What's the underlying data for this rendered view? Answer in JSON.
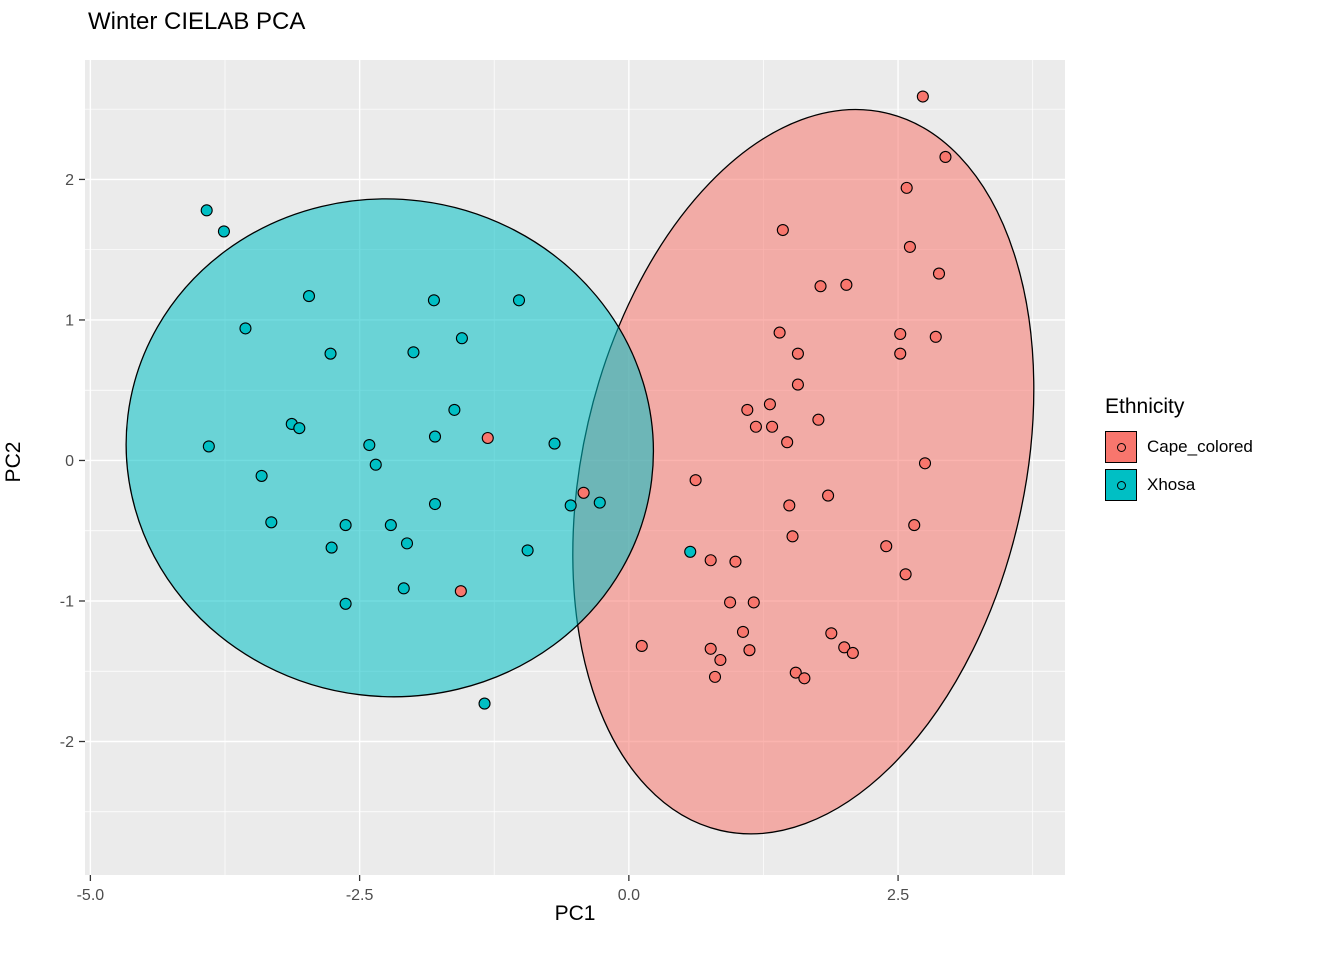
{
  "title": "Winter CIELAB PCA",
  "axes": {
    "x_label": "PC1",
    "y_label": "PC2"
  },
  "legend": {
    "title": "Ethnicity",
    "items": [
      {
        "label": "Cape_colored",
        "color": "#F8766D"
      },
      {
        "label": "Xhosa",
        "color": "#00BFC4"
      }
    ]
  },
  "colors": {
    "panel_bg": "#EBEBEB",
    "grid": "#FFFFFF",
    "tick_label": "#4d4d4d",
    "point_stroke": "#000000",
    "ellipse_stroke": "#000000"
  },
  "chart_data": {
    "type": "scatter",
    "title": "Winter CIELAB PCA",
    "xlabel": "PC1",
    "ylabel": "PC2",
    "xlim": [
      -5.05,
      4.05
    ],
    "ylim": [
      -2.95,
      2.85
    ],
    "x_ticks": [
      -5.0,
      -2.5,
      0.0,
      2.5
    ],
    "x_tick_labels": [
      "-5.0",
      "-2.5",
      "0.0",
      "2.5"
    ],
    "x_minor_ticks": [
      -3.75,
      -1.25,
      1.25,
      3.75
    ],
    "y_ticks": [
      -2,
      -1,
      0,
      1,
      2
    ],
    "y_tick_labels": [
      "-2",
      "-1",
      "0",
      "1",
      "2"
    ],
    "y_minor_ticks": [
      2.5,
      1.5,
      0.5,
      -0.5,
      -1.5,
      -2.5
    ],
    "grid": true,
    "legend_position": "right",
    "legend_title": "Ethnicity",
    "fill_alpha": 0.55,
    "series": [
      {
        "name": "Cape_colored",
        "color": "#F8766D",
        "ellipse": {
          "cx": 1.62,
          "cy": -0.08,
          "rx": 2.05,
          "ry": 2.62,
          "rotate_deg": 13
        },
        "points": [
          [
            2.73,
            2.59
          ],
          [
            2.94,
            2.16
          ],
          [
            2.58,
            1.94
          ],
          [
            1.43,
            1.64
          ],
          [
            2.61,
            1.52
          ],
          [
            2.88,
            1.33
          ],
          [
            1.78,
            1.24
          ],
          [
            2.02,
            1.25
          ],
          [
            2.52,
            0.9
          ],
          [
            2.85,
            0.88
          ],
          [
            1.4,
            0.91
          ],
          [
            1.57,
            0.76
          ],
          [
            2.52,
            0.76
          ],
          [
            1.57,
            0.54
          ],
          [
            1.1,
            0.36
          ],
          [
            1.31,
            0.4
          ],
          [
            1.18,
            0.24
          ],
          [
            1.33,
            0.24
          ],
          [
            1.47,
            0.13
          ],
          [
            1.76,
            0.29
          ],
          [
            2.75,
            -0.02
          ],
          [
            0.62,
            -0.14
          ],
          [
            1.85,
            -0.25
          ],
          [
            1.49,
            -0.32
          ],
          [
            2.65,
            -0.46
          ],
          [
            1.52,
            -0.54
          ],
          [
            2.39,
            -0.61
          ],
          [
            0.76,
            -0.71
          ],
          [
            0.99,
            -0.72
          ],
          [
            2.57,
            -0.81
          ],
          [
            0.94,
            -1.01
          ],
          [
            1.16,
            -1.01
          ],
          [
            1.06,
            -1.22
          ],
          [
            1.88,
            -1.23
          ],
          [
            2.0,
            -1.33
          ],
          [
            2.08,
            -1.37
          ],
          [
            0.12,
            -1.32
          ],
          [
            0.76,
            -1.34
          ],
          [
            0.85,
            -1.42
          ],
          [
            1.12,
            -1.35
          ],
          [
            0.8,
            -1.54
          ],
          [
            1.55,
            -1.51
          ],
          [
            1.63,
            -1.55
          ],
          [
            -1.31,
            0.16
          ],
          [
            -0.42,
            -0.23
          ],
          [
            -1.56,
            -0.93
          ]
        ]
      },
      {
        "name": "Xhosa",
        "color": "#00BFC4",
        "ellipse": {
          "cx": -2.22,
          "cy": 0.09,
          "rx": 2.45,
          "ry": 1.77,
          "rotate_deg": 7
        },
        "points": [
          [
            -3.92,
            1.78
          ],
          [
            -3.76,
            1.63
          ],
          [
            -3.56,
            0.94
          ],
          [
            -2.97,
            1.17
          ],
          [
            -2.77,
            0.76
          ],
          [
            -2.0,
            0.77
          ],
          [
            -1.81,
            1.14
          ],
          [
            -1.02,
            1.14
          ],
          [
            -1.55,
            0.87
          ],
          [
            -1.62,
            0.36
          ],
          [
            -1.8,
            0.17
          ],
          [
            -3.9,
            0.1
          ],
          [
            -3.13,
            0.26
          ],
          [
            -3.06,
            0.23
          ],
          [
            -3.41,
            -0.11
          ],
          [
            -2.41,
            0.11
          ],
          [
            -2.35,
            -0.03
          ],
          [
            -0.69,
            0.12
          ],
          [
            -3.32,
            -0.44
          ],
          [
            -2.76,
            -0.62
          ],
          [
            -2.63,
            -0.46
          ],
          [
            -2.21,
            -0.46
          ],
          [
            -2.06,
            -0.59
          ],
          [
            -1.8,
            -0.31
          ],
          [
            -0.54,
            -0.32
          ],
          [
            -0.27,
            -0.3
          ],
          [
            -2.63,
            -1.02
          ],
          [
            -2.09,
            -0.91
          ],
          [
            -0.94,
            -0.64
          ],
          [
            -1.34,
            -1.73
          ],
          [
            0.57,
            -0.65
          ]
        ]
      }
    ]
  }
}
